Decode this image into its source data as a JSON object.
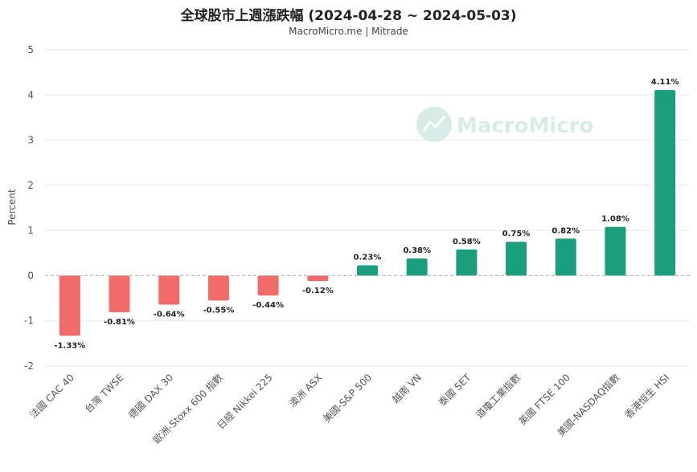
{
  "chart_data": {
    "type": "bar",
    "title": "全球股市上週漲跌幅 (2024-04-28 ~ 2024-05-03)",
    "subtitle": "MacroMicro.me | Mitrade",
    "ylabel": "Percent",
    "ylim": [
      -2,
      5
    ],
    "yticks": [
      "5",
      "4",
      "3",
      "2",
      "1",
      "0",
      "-1",
      "-2"
    ],
    "categories": [
      "法國 CAC 40",
      "台灣 TWSE",
      "德國 DAX 30",
      "歐洲-Stoxx 600 指數",
      "日經 Nikkei 225",
      "澳洲 ASX",
      "美國-S&P 500",
      "越南 VN",
      "泰國 SET",
      "道瓊工業指數",
      "英國 FTSE 100",
      "美國-NASDAQ指數",
      "香港恒生 HSI"
    ],
    "values": [
      -1.33,
      -0.81,
      -0.64,
      -0.55,
      -0.44,
      -0.12,
      0.23,
      0.38,
      0.58,
      0.75,
      0.82,
      1.08,
      4.11
    ],
    "value_labels": [
      "-1.33%",
      "-0.81%",
      "-0.64%",
      "-0.55%",
      "-0.44%",
      "-0.12%",
      "0.23%",
      "0.38%",
      "0.58%",
      "0.75%",
      "0.82%",
      "1.08%",
      "4.11%"
    ],
    "colors": {
      "positive": "#1a9e7d",
      "negative": "#f26b6b",
      "zero_line": "#aaaaaa",
      "grid": "#e6e6e6"
    },
    "grid": true,
    "legend": "none"
  },
  "watermark": {
    "text": "MacroMicro",
    "icon": "chart-logo-icon",
    "color": "#d7ece6"
  }
}
